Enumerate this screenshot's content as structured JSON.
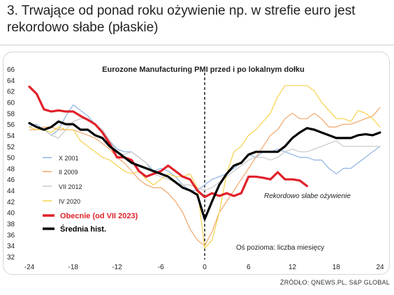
{
  "heading": "3. Trwające od ponad roku ożywienie np. w strefie euro jest rekordowo słabe (płaskie)",
  "source": "ŹRÓDŁO: QNEWS.PL, S&P GLOBAL",
  "chart_data": {
    "type": "line",
    "title": "Eurozone Manufacturing PMI przed i po lokalnym dołku",
    "xlabel": "Oś pozioma: liczba miesięcy",
    "ylabel": "",
    "annotation": "Rekordowo słabe ożywienie",
    "xlim": [
      -24,
      24
    ],
    "ylim": [
      32,
      66
    ],
    "xticks": [
      -24,
      -18,
      -12,
      -6,
      0,
      6,
      12,
      18,
      24
    ],
    "yticks": [
      32,
      34,
      36,
      38,
      40,
      42,
      44,
      46,
      48,
      50,
      52,
      54,
      56,
      58,
      60,
      62,
      64,
      66
    ],
    "legend_position": "left",
    "series": [
      {
        "name": "X 2001",
        "color": "#8db3e2",
        "x": [
          -24,
          -23,
          -22,
          -21,
          -20,
          -19,
          -18,
          -17,
          -16,
          -15,
          -14,
          -13,
          -12,
          -11,
          -10,
          -9,
          -8,
          -7,
          -6,
          -5,
          -4,
          -3,
          -2,
          -1,
          0,
          1,
          2,
          3,
          4,
          5,
          6,
          7,
          8,
          9,
          10,
          11,
          12,
          13,
          14,
          15,
          16,
          17,
          18,
          19,
          20,
          21,
          22,
          23,
          24
        ],
        "y": [
          55.5,
          56,
          55,
          54,
          55,
          57.5,
          59.5,
          58.5,
          57.5,
          56,
          55,
          53,
          51.5,
          51,
          51,
          50,
          49,
          47.5,
          48,
          47.5,
          46.5,
          45,
          44,
          44,
          45,
          46,
          46.5,
          47,
          48,
          49,
          50.5,
          50,
          51,
          51,
          51.5,
          51,
          50.5,
          50,
          50,
          49.5,
          49.5,
          48,
          47,
          48,
          48,
          49,
          50,
          51,
          52
        ]
      },
      {
        "name": "II 2009",
        "color": "#f0a56a",
        "x": [
          -24,
          -23,
          -22,
          -21,
          -20,
          -19,
          -18,
          -17,
          -16,
          -15,
          -14,
          -13,
          -12,
          -11,
          -10,
          -9,
          -8,
          -7,
          -6,
          -5,
          -4,
          -3,
          -2,
          -1,
          0,
          1,
          2,
          3,
          4,
          5,
          6,
          7,
          8,
          9,
          10,
          11,
          12,
          13,
          14,
          15,
          16,
          17,
          18,
          19,
          20,
          21,
          22,
          23,
          24
        ],
        "y": [
          55,
          55,
          55.5,
          55.5,
          55,
          55,
          55,
          54.5,
          54,
          53.5,
          52.5,
          51.5,
          50,
          49,
          47.5,
          46,
          45,
          44.5,
          44.5,
          43.5,
          42,
          40,
          37,
          35,
          34,
          36.5,
          40,
          42,
          44,
          46,
          48,
          50,
          52,
          54,
          55,
          57,
          58,
          57,
          57,
          58,
          57,
          55.5,
          55.5,
          56,
          56,
          56.5,
          57,
          57.5,
          59
        ]
      },
      {
        "name": "VII 2012",
        "color": "#c8c8c8",
        "x": [
          -24,
          -23,
          -22,
          -21,
          -20,
          -19,
          -18,
          -17,
          -16,
          -15,
          -14,
          -13,
          -12,
          -11,
          -10,
          -9,
          -8,
          -7,
          -6,
          -5,
          -4,
          -3,
          -2,
          -1,
          0,
          1,
          2,
          3,
          4,
          5,
          6,
          7,
          8,
          9,
          10,
          11,
          12,
          13,
          14,
          15,
          16,
          17,
          18,
          19,
          20,
          21,
          22,
          23,
          24
        ],
        "y": [
          56,
          55.5,
          55,
          54,
          53.5,
          55,
          56.5,
          57,
          57,
          56,
          55,
          53,
          51,
          50.5,
          51,
          50,
          49,
          47,
          46.5,
          46,
          45.5,
          45,
          45,
          44.5,
          44,
          44.5,
          45.5,
          46.5,
          47.5,
          48.5,
          49.5,
          50,
          50,
          49.5,
          50,
          51,
          51.5,
          51,
          51,
          51.5,
          52,
          52.5,
          53,
          52,
          52,
          52,
          52,
          52,
          52
        ]
      },
      {
        "name": "IV 2020",
        "color": "#f5d24a",
        "x": [
          -24,
          -23,
          -22,
          -21,
          -20,
          -19,
          -18,
          -17,
          -16,
          -15,
          -14,
          -13,
          -12,
          -11,
          -10,
          -9,
          -8,
          -7,
          -6,
          -5,
          -4,
          -3,
          -2,
          -1,
          0,
          1,
          2,
          3,
          4,
          5,
          6,
          7,
          8,
          9,
          10,
          11,
          12,
          13,
          14,
          15,
          16,
          17,
          18,
          19,
          20,
          21,
          22,
          23,
          24
        ],
        "y": [
          55.5,
          55,
          55,
          54.5,
          55.5,
          55,
          55,
          53,
          52,
          51,
          50,
          49.5,
          48.5,
          47.5,
          47,
          47.5,
          46,
          45,
          46,
          47,
          46.5,
          46.5,
          47,
          44.5,
          33.5,
          35,
          40,
          47,
          51,
          52,
          54,
          55,
          56.5,
          58,
          61,
          63,
          63,
          63,
          63,
          62,
          60,
          58.5,
          57,
          57,
          56.5,
          58.5,
          58,
          57,
          55.5
        ]
      },
      {
        "name": "Obecnie (od VII 2023)",
        "color": "#e0212a",
        "x": [
          -24,
          -23,
          -22,
          -21,
          -20,
          -19,
          -18,
          -17,
          -16,
          -15,
          -14,
          -13,
          -12,
          -11,
          -10,
          -9,
          -8,
          -7,
          -6,
          -5,
          -4,
          -3,
          -2,
          -1,
          0,
          1,
          2,
          3,
          4,
          5,
          6,
          7,
          8,
          9,
          10,
          11,
          12,
          13,
          14
        ],
        "y": [
          62.8,
          61.5,
          58.7,
          58.3,
          58.5,
          58.3,
          58.3,
          57.5,
          56.8,
          56,
          54.5,
          52.5,
          50,
          50,
          49.5,
          47.5,
          46.5,
          47,
          47.5,
          48.5,
          47.5,
          46.5,
          46,
          44,
          42.8,
          43.5,
          43,
          43.5,
          43,
          43.5,
          46.5,
          46.5,
          46.3,
          46,
          47.3,
          46,
          46,
          45.8,
          44.8
        ]
      },
      {
        "name": "Średnia hist.",
        "color": "#000000",
        "x": [
          -24,
          -23,
          -22,
          -21,
          -20,
          -19,
          -18,
          -17,
          -16,
          -15,
          -14,
          -13,
          -12,
          -11,
          -10,
          -9,
          -8,
          -7,
          -6,
          -5,
          -4,
          -3,
          -2,
          -1,
          0,
          1,
          2,
          3,
          4,
          5,
          6,
          7,
          8,
          9,
          10,
          11,
          12,
          13,
          14,
          15,
          16,
          17,
          18,
          19,
          20,
          21,
          22,
          23,
          24
        ],
        "y": [
          56.2,
          55.5,
          55,
          55.5,
          56.5,
          56,
          56,
          55,
          55,
          54,
          53.5,
          52,
          51,
          50,
          49,
          48.5,
          48,
          47.5,
          47,
          46.5,
          45.5,
          44.5,
          44,
          43.2,
          38.8,
          42,
          45,
          47,
          48.5,
          49,
          50.5,
          51,
          51,
          51,
          51,
          52,
          53.5,
          54.5,
          55.3,
          55,
          54.5,
          54,
          53.5,
          53.5,
          53.5,
          54,
          54.2,
          54,
          54.5
        ]
      }
    ]
  }
}
